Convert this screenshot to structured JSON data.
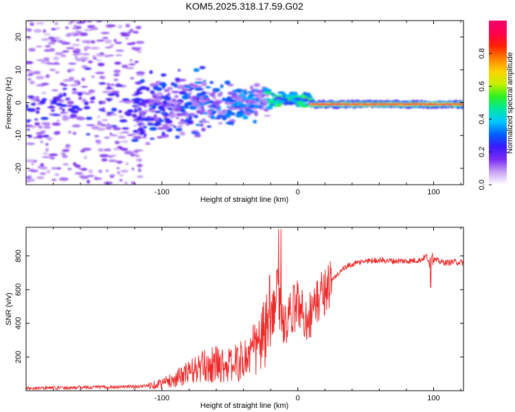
{
  "title": "KOM5.2025.318.17.59.G02",
  "chart_data": [
    {
      "type": "heatmap",
      "name": "spectrogram",
      "xlabel": "Height of straight line (km)",
      "ylabel": "Frequency (Hz)",
      "xlim": [
        -200,
        122
      ],
      "ylim": [
        -25,
        25
      ],
      "xticks": [
        -100,
        0,
        100
      ],
      "yticks": [
        -20,
        -10,
        0,
        10,
        20
      ],
      "colorbar": {
        "label": "Normalized spectral amplitude",
        "range": [
          0,
          1
        ],
        "ticks": [
          "0.0",
          "0.2",
          "0.4",
          "0.6",
          "0.8"
        ],
        "tick_values": [
          0,
          0.2,
          0.4,
          0.6,
          0.8
        ],
        "colors": [
          "#ffffff",
          "#c9a3f5",
          "#7a2df0",
          "#3a1aff",
          "#0060ff",
          "#00c8ff",
          "#00e8a0",
          "#30f020",
          "#c8f000",
          "#ffd000",
          "#ff8000",
          "#ff2000",
          "#ff0050",
          "#f0006a"
        ]
      },
      "features": [
        {
          "label": "scattered noise",
          "x_range": [
            -200,
            -120
          ],
          "freq_range": [
            -25,
            25
          ],
          "amplitude": 0.1
        },
        {
          "label": "broadening reflection",
          "x_range": [
            -120,
            -20
          ],
          "freq_center": -2,
          "amplitude": 0.2
        },
        {
          "label": "transition",
          "x_range": [
            -20,
            10
          ],
          "freq_center": 1,
          "amplitude": 0.45
        },
        {
          "label": "direct signal line",
          "x_range": [
            10,
            122
          ],
          "freq_center": -0.5,
          "amplitude": 0.95
        }
      ]
    },
    {
      "type": "line",
      "name": "snr",
      "xlabel": "Height of straight line (km)",
      "ylabel": "SNR (v/v)",
      "xlim": [
        -200,
        122
      ],
      "ylim": [
        0,
        970
      ],
      "xticks": [
        -100,
        0,
        100
      ],
      "yticks": [
        200,
        400,
        600,
        800
      ],
      "color": "#ee2a2a",
      "series": [
        {
          "name": "SNR",
          "x": [
            -200,
            -180,
            -160,
            -140,
            -120,
            -110,
            -100,
            -90,
            -80,
            -70,
            -60,
            -50,
            -40,
            -30,
            -25,
            -20,
            -17,
            -15,
            -12,
            -10,
            -5,
            0,
            5,
            10,
            15,
            20,
            25,
            30,
            35,
            40,
            50,
            60,
            70,
            80,
            90,
            95,
            98,
            100,
            105,
            110,
            115,
            122
          ],
          "y": [
            15,
            18,
            20,
            22,
            25,
            30,
            45,
            70,
            110,
            140,
            160,
            150,
            180,
            260,
            320,
            420,
            520,
            600,
            430,
            350,
            450,
            530,
            430,
            460,
            540,
            600,
            650,
            700,
            730,
            750,
            770,
            775,
            770,
            770,
            775,
            800,
            700,
            780,
            765,
            760,
            765,
            760
          ]
        }
      ]
    }
  ]
}
